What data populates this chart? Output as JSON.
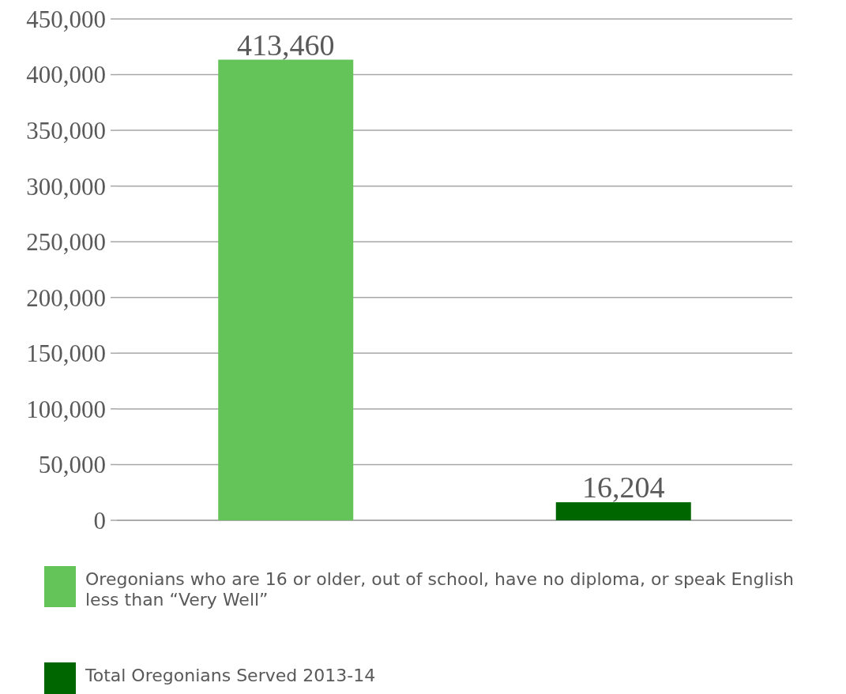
{
  "chart_data": {
    "type": "bar",
    "categories": [
      null,
      null
    ],
    "stacked": true,
    "series": [
      {
        "name": "Oregonians who are 16 or older, out of school, have no diploma, or speak English less than “Very Well”",
        "color": "#64c45a",
        "values": [
          413460,
          null
        ],
        "value_labels": [
          "413,460",
          null
        ]
      },
      {
        "name": "Total Oregonians Served 2013-14",
        "color": "#006600",
        "values": [
          null,
          16204
        ],
        "value_labels": [
          null,
          "16,204"
        ]
      }
    ],
    "ylim": [
      0,
      450000
    ],
    "yticks": [
      {
        "value": 0,
        "label": "0"
      },
      {
        "value": 50000,
        "label": "50,000"
      },
      {
        "value": 100000,
        "label": "100,000"
      },
      {
        "value": 150000,
        "label": "150,000"
      },
      {
        "value": 200000,
        "label": "200,000"
      },
      {
        "value": 250000,
        "label": "250,000"
      },
      {
        "value": 300000,
        "label": "300,000"
      },
      {
        "value": 350000,
        "label": "350,000"
      },
      {
        "value": 400000,
        "label": "400,000"
      },
      {
        "value": 450000,
        "label": "450,000"
      }
    ],
    "grid": "y",
    "legend": "bottom"
  }
}
